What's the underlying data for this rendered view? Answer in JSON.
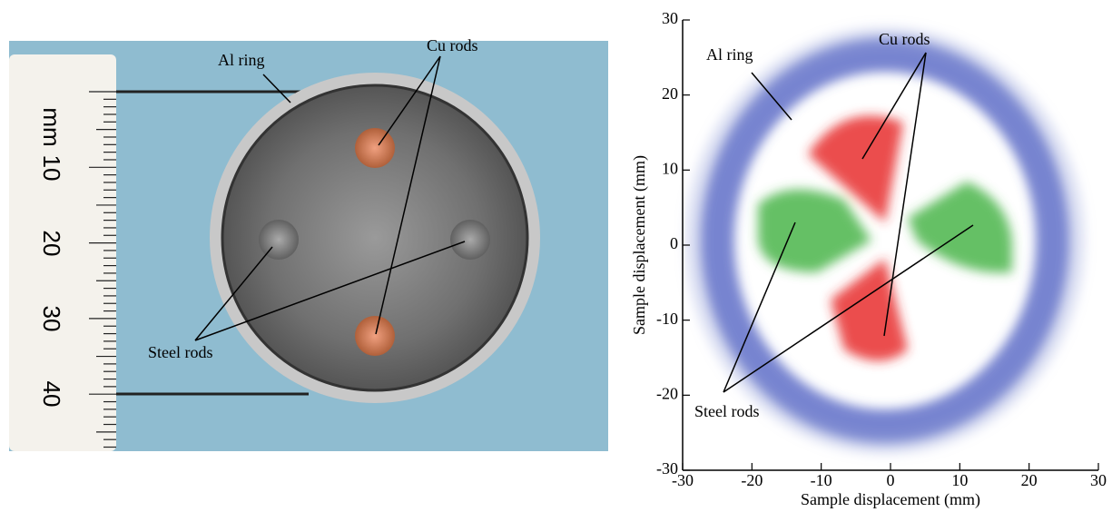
{
  "photo": {
    "labels": {
      "al_ring": "Al ring",
      "cu_rods": "Cu rods",
      "steel_rods": "Steel rods"
    },
    "ruler": {
      "unit": "mm",
      "labels": [
        "10",
        "20",
        "30",
        "40"
      ]
    }
  },
  "chart_data": {
    "type": "map",
    "xlabel": "Sample displacement (mm)",
    "ylabel": "Sample displacement (mm)",
    "xlim": [
      -30,
      30
    ],
    "ylim": [
      -30,
      30
    ],
    "xticks": [
      -30,
      -20,
      -10,
      0,
      10,
      20,
      30
    ],
    "yticks": [
      -30,
      -20,
      -10,
      0,
      10,
      20,
      30
    ],
    "annotations": {
      "al_ring": "Al ring",
      "cu_rods": "Cu rods",
      "steel_rods": "Steel rods"
    }
  }
}
